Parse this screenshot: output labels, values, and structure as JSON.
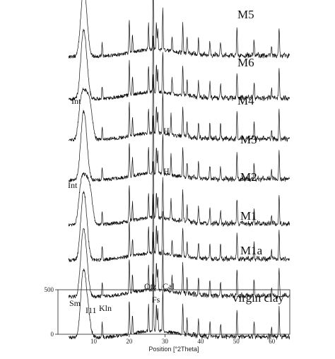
{
  "chart_data": {
    "type": "line",
    "title": "",
    "xlabel": "Position [°2Theta]",
    "ylabel": "",
    "xlim": [
      0,
      65
    ],
    "x_ticks": [
      10,
      20,
      30,
      40,
      50,
      60
    ],
    "ylim": [
      0,
      500
    ],
    "y_ticks": [
      0,
      500
    ],
    "grid": false,
    "stacked_offset_traces": true,
    "series": [
      {
        "name": "M5",
        "peaks": [
          [
            6.6,
            30
          ],
          [
            7.2,
            62
          ],
          [
            8.0,
            35
          ],
          [
            12.4,
            18
          ],
          [
            20.0,
            48
          ],
          [
            20.9,
            25
          ],
          [
            25.4,
            36
          ],
          [
            26.7,
            84
          ],
          [
            27.6,
            38
          ],
          [
            28.0,
            30
          ],
          [
            29.4,
            58
          ],
          [
            32.0,
            22
          ],
          [
            35.0,
            40
          ],
          [
            36.2,
            22
          ],
          [
            39.4,
            22
          ],
          [
            42.6,
            20
          ],
          [
            45.6,
            18
          ],
          [
            50.2,
            36
          ],
          [
            55.0,
            22
          ],
          [
            59.9,
            14
          ],
          [
            62.0,
            40
          ]
        ]
      },
      {
        "name": "M6",
        "peaks": [
          [
            6.6,
            30
          ],
          [
            7.2,
            62
          ],
          [
            8.0,
            35
          ],
          [
            12.4,
            18
          ],
          [
            20.0,
            48
          ],
          [
            20.9,
            25
          ],
          [
            25.4,
            36
          ],
          [
            26.7,
            84
          ],
          [
            27.6,
            38
          ],
          [
            28.0,
            30
          ],
          [
            29.4,
            58
          ],
          [
            32.0,
            22
          ],
          [
            35.0,
            40
          ],
          [
            36.2,
            22
          ],
          [
            39.4,
            22
          ],
          [
            42.6,
            20
          ],
          [
            45.6,
            18
          ],
          [
            50.2,
            36
          ],
          [
            55.0,
            22
          ],
          [
            59.9,
            14
          ],
          [
            62.0,
            40
          ]
        ]
      },
      {
        "name": "M4",
        "peaks": [
          [
            6.3,
            40
          ],
          [
            7.2,
            44
          ],
          [
            8.2,
            44
          ],
          [
            9.2,
            36
          ],
          [
            12.4,
            18
          ],
          [
            20.0,
            48
          ],
          [
            20.9,
            25
          ],
          [
            25.4,
            36
          ],
          [
            26.7,
            84
          ],
          [
            27.6,
            38
          ],
          [
            28.0,
            30
          ],
          [
            29.4,
            58
          ],
          [
            31.7,
            30
          ],
          [
            35.0,
            40
          ],
          [
            36.2,
            22
          ],
          [
            39.4,
            22
          ],
          [
            42.6,
            20
          ],
          [
            45.6,
            18
          ],
          [
            50.2,
            36
          ],
          [
            55.0,
            22
          ],
          [
            59.9,
            14
          ],
          [
            62.0,
            40
          ]
        ]
      },
      {
        "name": "M3",
        "peaks": [
          [
            6.6,
            30
          ],
          [
            7.2,
            62
          ],
          [
            8.0,
            35
          ],
          [
            12.4,
            18
          ],
          [
            20.0,
            48
          ],
          [
            20.9,
            25
          ],
          [
            25.4,
            36
          ],
          [
            26.7,
            84
          ],
          [
            27.6,
            38
          ],
          [
            28.0,
            30
          ],
          [
            29.4,
            58
          ],
          [
            31.7,
            30
          ],
          [
            35.0,
            40
          ],
          [
            36.2,
            22
          ],
          [
            39.4,
            22
          ],
          [
            42.6,
            20
          ],
          [
            45.6,
            18
          ],
          [
            50.2,
            36
          ],
          [
            55.0,
            22
          ],
          [
            59.9,
            14
          ],
          [
            62.0,
            40
          ]
        ]
      },
      {
        "name": "M2",
        "peaks": [
          [
            6.3,
            40
          ],
          [
            7.2,
            44
          ],
          [
            8.2,
            44
          ],
          [
            9.2,
            36
          ],
          [
            12.4,
            18
          ],
          [
            20.0,
            48
          ],
          [
            20.9,
            25
          ],
          [
            25.4,
            36
          ],
          [
            26.7,
            84
          ],
          [
            27.6,
            38
          ],
          [
            28.0,
            30
          ],
          [
            29.4,
            58
          ],
          [
            31.7,
            30
          ],
          [
            35.0,
            40
          ],
          [
            36.2,
            22
          ],
          [
            39.4,
            22
          ],
          [
            42.6,
            20
          ],
          [
            45.6,
            18
          ],
          [
            50.2,
            36
          ],
          [
            55.0,
            22
          ],
          [
            59.9,
            14
          ],
          [
            62.0,
            40
          ]
        ]
      },
      {
        "name": "M1",
        "peaks": [
          [
            6.6,
            30
          ],
          [
            7.2,
            62
          ],
          [
            8.0,
            35
          ],
          [
            12.4,
            18
          ],
          [
            20.0,
            48
          ],
          [
            20.9,
            25
          ],
          [
            25.4,
            36
          ],
          [
            26.7,
            84
          ],
          [
            27.6,
            38
          ],
          [
            28.0,
            30
          ],
          [
            29.4,
            58
          ],
          [
            32.0,
            22
          ],
          [
            35.0,
            40
          ],
          [
            36.2,
            22
          ],
          [
            39.4,
            22
          ],
          [
            42.6,
            20
          ],
          [
            45.6,
            18
          ],
          [
            50.2,
            36
          ],
          [
            55.0,
            22
          ],
          [
            59.9,
            14
          ],
          [
            62.0,
            40
          ]
        ]
      },
      {
        "name": "M1a",
        "peaks": [
          [
            6.6,
            30
          ],
          [
            7.2,
            62
          ],
          [
            8.0,
            35
          ],
          [
            12.4,
            18
          ],
          [
            20.0,
            48
          ],
          [
            20.9,
            25
          ],
          [
            25.4,
            36
          ],
          [
            26.7,
            84
          ],
          [
            27.6,
            38
          ],
          [
            28.0,
            30
          ],
          [
            29.4,
            58
          ],
          [
            32.0,
            22
          ],
          [
            35.0,
            40
          ],
          [
            36.2,
            22
          ],
          [
            39.4,
            22
          ],
          [
            42.6,
            20
          ],
          [
            45.6,
            18
          ],
          [
            50.2,
            36
          ],
          [
            55.0,
            22
          ],
          [
            59.9,
            14
          ],
          [
            62.0,
            40
          ]
        ]
      },
      {
        "name": "virgin clay",
        "peaks": [
          [
            6.6,
            30
          ],
          [
            7.2,
            62
          ],
          [
            8.0,
            35
          ],
          [
            8.8,
            14
          ],
          [
            12.4,
            20
          ],
          [
            20.0,
            48
          ],
          [
            20.9,
            25
          ],
          [
            25.4,
            36
          ],
          [
            26.7,
            84
          ],
          [
            27.6,
            38
          ],
          [
            28.0,
            30
          ],
          [
            29.4,
            58
          ],
          [
            35.0,
            40
          ],
          [
            36.2,
            22
          ],
          [
            39.4,
            22
          ],
          [
            42.6,
            20
          ],
          [
            45.6,
            18
          ],
          [
            50.2,
            36
          ],
          [
            55.0,
            22
          ],
          [
            59.9,
            14
          ],
          [
            62.0,
            40
          ]
        ]
      }
    ],
    "annotations": [
      {
        "text": "Sm",
        "series": "virgin clay"
      },
      {
        "text": "I11",
        "series": "virgin clay"
      },
      {
        "text": "Kln",
        "series": "virgin clay"
      },
      {
        "text": "Qtz",
        "series": "virgin clay"
      },
      {
        "text": "Fs",
        "series": "virgin clay"
      },
      {
        "text": "Cal",
        "series": "virgin clay"
      },
      {
        "text": "Int",
        "series": "M4"
      },
      {
        "text": "Int",
        "series": "M2"
      },
      {
        "text": "H",
        "series": "M4"
      },
      {
        "text": "H",
        "series": "M3"
      }
    ]
  }
}
